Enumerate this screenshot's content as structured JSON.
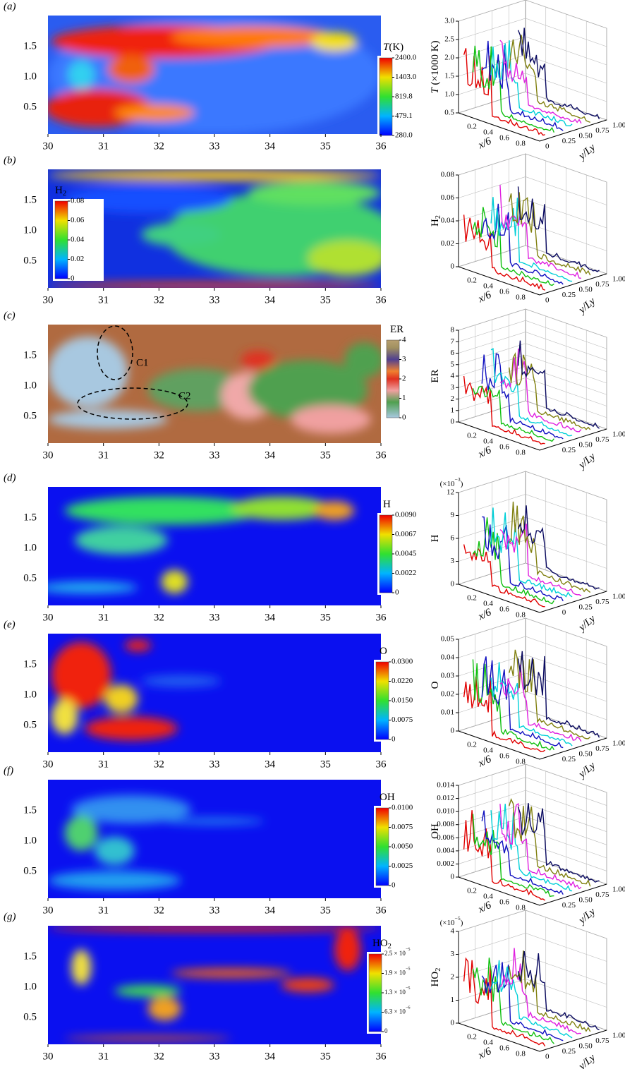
{
  "panels": [
    {
      "label": "(a)",
      "var": [
        {
          "t": "T",
          "i": true
        },
        {
          "t": "(K)"
        }
      ],
      "colorbar": [
        "2400.0",
        "1403.0",
        "819.8",
        "479.1",
        "280.0"
      ],
      "yticks": [
        "1.5",
        "1.0",
        "0.5"
      ],
      "xticks": [
        "30",
        "31",
        "32",
        "33",
        "34",
        "35",
        "36"
      ],
      "plot3d": {
        "zlabel": [
          {
            "t": "T",
            "i": true
          },
          {
            "t": " (×1000 K)"
          }
        ],
        "zticks": [
          "0.5",
          "1.0",
          "1.5",
          "2.0",
          "2.5",
          "3.0"
        ],
        "xlabel": [
          {
            "t": "x/6",
            "i": true
          }
        ],
        "xticks": [
          "0.2",
          "0.4",
          "0.6",
          "0.8"
        ],
        "ylabel": [
          {
            "t": "y/Ly",
            "i": true
          }
        ],
        "yticks": [
          "0",
          "0.25",
          "0.50",
          "0.75",
          "1.00"
        ]
      }
    },
    {
      "label": "(b)",
      "var": [
        {
          "t": "H"
        },
        {
          "t": "2",
          "s": true
        }
      ],
      "colorbar": [
        "0.08",
        "0.06",
        "0.04",
        "0.02",
        "0"
      ],
      "yticks": [
        "1.5",
        "1.0",
        "0.5"
      ],
      "xticks": [
        "30",
        "31",
        "32",
        "33",
        "34",
        "35",
        "36"
      ],
      "plot3d": {
        "zlabel": [
          {
            "t": "H"
          },
          {
            "t": "2",
            "s": true
          }
        ],
        "zticks": [
          "0",
          "0.02",
          "0.04",
          "0.06",
          "0.08"
        ],
        "xlabel": [
          {
            "t": "x/6",
            "i": true
          }
        ],
        "xticks": [
          "0.2",
          "0.4",
          "0.6",
          "0.8"
        ],
        "ylabel": [
          {
            "t": "y/Ly",
            "i": true
          }
        ],
        "yticks": [
          "0",
          "0.25",
          "0.50",
          "0.75",
          "1.00"
        ]
      }
    },
    {
      "label": "(c)",
      "var": [
        {
          "t": "ER"
        }
      ],
      "colorbar": [
        "4",
        "3",
        "2",
        "1",
        "0"
      ],
      "annotations": [
        "C1",
        "C2"
      ],
      "yticks": [
        "1.5",
        "1.0",
        "0.5"
      ],
      "xticks": [
        "30",
        "31",
        "32",
        "33",
        "34",
        "35",
        "36"
      ],
      "plot3d": {
        "zlabel": [
          {
            "t": "ER"
          }
        ],
        "zticks": [
          "0",
          "1",
          "2",
          "3",
          "4",
          "5",
          "6",
          "7",
          "8"
        ],
        "xlabel": [
          {
            "t": "x/6",
            "i": true
          }
        ],
        "xticks": [
          "0.2",
          "0.4",
          "0.6",
          "0.8"
        ],
        "ylabel": [
          {
            "t": "y/Ly",
            "i": true
          }
        ],
        "yticks": [
          "0.25",
          "0.50",
          "0.75",
          "1.00"
        ]
      }
    },
    {
      "label": "(d)",
      "var": [
        {
          "t": "H"
        }
      ],
      "colorbar": [
        "0.0090",
        "0.0067",
        "0.0045",
        "0.0022",
        "0"
      ],
      "yticks": [
        "1.5",
        "1.0",
        "0.5"
      ],
      "xticks": [
        "30",
        "31",
        "32",
        "33",
        "34",
        "35",
        "36"
      ],
      "plot3d": {
        "zscale": [
          {
            "t": "(×10"
          },
          {
            "t": "−3",
            "p": true
          },
          {
            "t": ")"
          }
        ],
        "zlabel": [
          {
            "t": "H"
          }
        ],
        "zticks": [
          "0",
          "3",
          "6",
          "9",
          "12"
        ],
        "xlabel": [
          {
            "t": "x/6",
            "i": true
          }
        ],
        "xticks": [
          "0.2",
          "0.4",
          "0.6",
          "0.8"
        ],
        "ylabel": [
          {
            "t": "y/Ly",
            "i": true
          }
        ],
        "yticks": [
          "0",
          "0.25",
          "0.75",
          "1.00"
        ]
      }
    },
    {
      "label": "(e)",
      "var": [
        {
          "t": "O"
        }
      ],
      "colorbar": [
        "0.0300",
        "0.0220",
        "0.0150",
        "0.0075",
        "0"
      ],
      "yticks": [
        "1.5",
        "1.0",
        "0.5"
      ],
      "xticks": [
        "30",
        "31",
        "32",
        "33",
        "34",
        "35",
        "36"
      ],
      "plot3d": {
        "zlabel": [
          {
            "t": "O"
          }
        ],
        "zticks": [
          "0",
          "0.01",
          "0.02",
          "0.03",
          "0.04",
          "0.05"
        ],
        "xlabel": [
          {
            "t": "x/6",
            "i": true
          }
        ],
        "xticks": [
          "0.2",
          "0.4",
          "0.6",
          "0.8"
        ],
        "ylabel": [
          {
            "t": "y/Ly",
            "i": true
          }
        ],
        "yticks": [
          "0.25",
          "0.50",
          "0.75",
          "1.00"
        ]
      }
    },
    {
      "label": "(f)",
      "var": [
        {
          "t": "OH"
        }
      ],
      "colorbar": [
        "0.0100",
        "0.0075",
        "0.0050",
        "0.0025",
        "0"
      ],
      "yticks": [
        "1.5",
        "1.0",
        "0.5"
      ],
      "xticks": [
        "30",
        "31",
        "32",
        "33",
        "34",
        "35",
        "36"
      ],
      "plot3d": {
        "zlabel": [
          {
            "t": "OH"
          }
        ],
        "zticks": [
          "0",
          "0.002",
          "0.004",
          "0.006",
          "0.008",
          "0.010",
          "0.012",
          "0.014"
        ],
        "xlabel": [
          {
            "t": "x/6",
            "i": true
          }
        ],
        "xticks": [
          "0.2",
          "0.4",
          "0.6",
          "0.8"
        ],
        "ylabel": [
          {
            "t": "y/Ly",
            "i": true
          }
        ],
        "yticks": [
          "0.25",
          "0.50",
          "0.75",
          "1.00"
        ]
      }
    },
    {
      "label": "(g)",
      "var": [
        {
          "t": "HO"
        },
        {
          "t": "2",
          "s": true
        }
      ],
      "colorbar": [
        [
          {
            "t": "2.5 × 10"
          },
          {
            "t": "−5",
            "p": true
          }
        ],
        [
          {
            "t": "1.9 × 10"
          },
          {
            "t": "−5",
            "p": true
          }
        ],
        [
          {
            "t": "1.3 × 10"
          },
          {
            "t": "−5",
            "p": true
          }
        ],
        [
          {
            "t": "6.3 × 10"
          },
          {
            "t": "−6",
            "p": true
          }
        ],
        [
          {
            "t": "0"
          }
        ]
      ],
      "yticks": [
        "1.5",
        "1.0",
        "0.5"
      ],
      "xticks": [
        "30",
        "31",
        "32",
        "33",
        "34",
        "35",
        "36"
      ],
      "plot3d": {
        "zscale": [
          {
            "t": "(×10"
          },
          {
            "t": "−5",
            "p": true
          },
          {
            "t": ")"
          }
        ],
        "zlabel": [
          {
            "t": "HO"
          },
          {
            "t": "2",
            "s": true
          }
        ],
        "zticks": [
          "0",
          "1",
          "2",
          "3",
          "4"
        ],
        "xlabel": [
          {
            "t": "x/6",
            "i": true
          }
        ],
        "xticks": [
          "0.2",
          "0.4",
          "0.6",
          "0.8"
        ],
        "ylabel": [
          {
            "t": "y/Ly",
            "i": true
          }
        ],
        "yticks": [
          "0",
          "0.25",
          "0.50",
          "0.75",
          "1.00"
        ]
      }
    }
  ]
}
